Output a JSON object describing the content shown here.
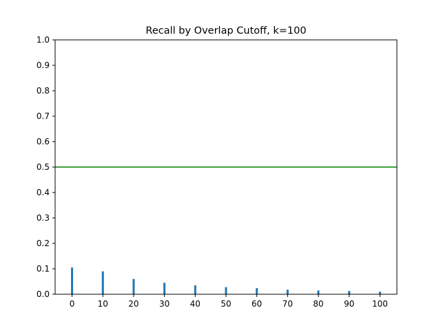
{
  "chart_data": {
    "type": "bar",
    "title": "Recall by Overlap Cutoff, k=100",
    "xlabel": "",
    "ylabel": "",
    "x": [
      0,
      10,
      20,
      30,
      40,
      50,
      60,
      70,
      80,
      90,
      100
    ],
    "values": [
      0.105,
      0.09,
      0.06,
      0.045,
      0.035,
      0.028,
      0.024,
      0.018,
      0.015,
      0.013,
      0.01
    ],
    "xticks": [
      "0",
      "10",
      "20",
      "30",
      "40",
      "50",
      "60",
      "70",
      "80",
      "90",
      "100"
    ],
    "yticks": [
      "0.0",
      "0.1",
      "0.2",
      "0.3",
      "0.4",
      "0.5",
      "0.6",
      "0.7",
      "0.8",
      "0.9",
      "1.0"
    ],
    "xlim": [
      -5.5,
      105.5
    ],
    "ylim": [
      0,
      1.0
    ],
    "reference_line": {
      "y": 0.5,
      "color": "#008000"
    },
    "bar_color": "#1f77b4",
    "grid": false,
    "legend": "none"
  }
}
